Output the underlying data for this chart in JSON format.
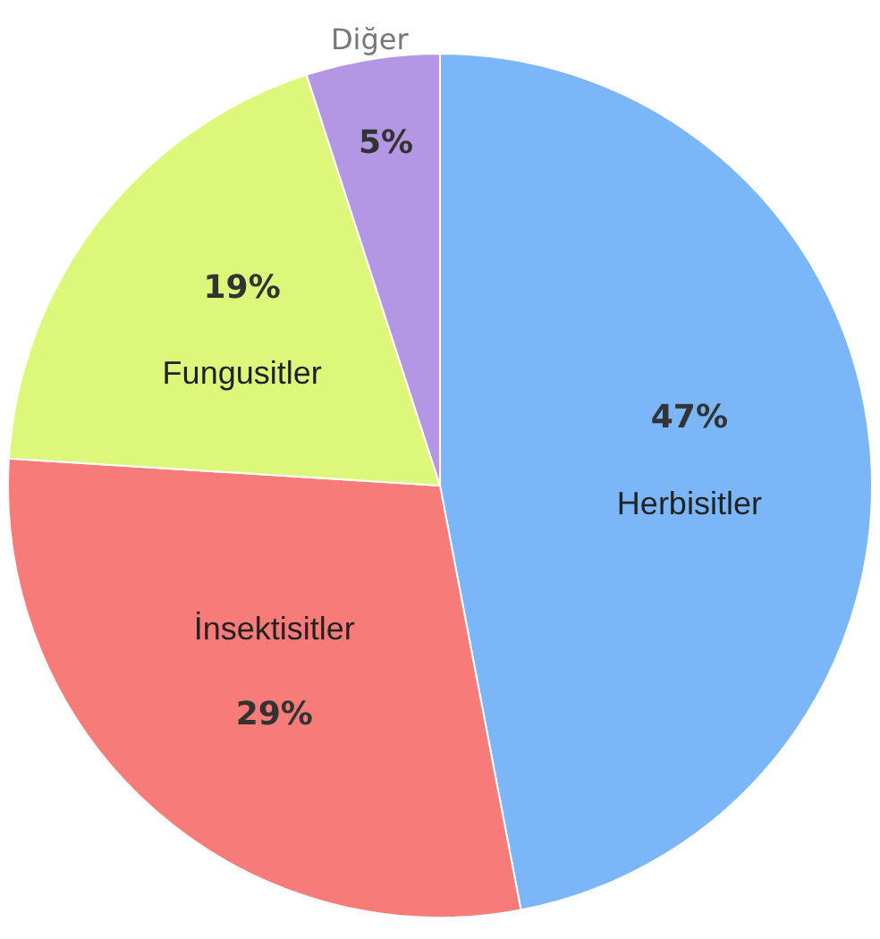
{
  "chart_data": {
    "type": "pie",
    "categories": [
      "Herbisitler",
      "İnsektisitler",
      "Fungusitler",
      "Diğer"
    ],
    "values": [
      47,
      29,
      19,
      5
    ],
    "value_labels": [
      "47%",
      "29%",
      "19%",
      "5%"
    ],
    "colors": [
      "#7ab6f8",
      "#f77b78",
      "#dcf77a",
      "#b497e4"
    ]
  }
}
